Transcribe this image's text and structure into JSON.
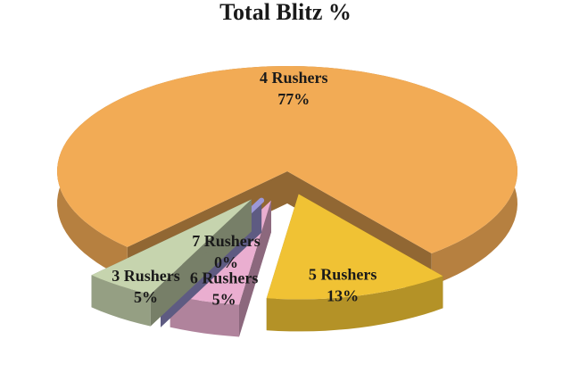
{
  "chart_data": {
    "type": "pie",
    "title": "Total Blitz %",
    "categories": [
      "4 Rushers",
      "5 Rushers",
      "6 Rushers",
      "7 Rushers",
      "3 Rushers"
    ],
    "values": [
      77,
      13,
      5,
      0,
      5
    ],
    "value_labels": [
      "77%",
      "13%",
      "5%",
      "0%",
      "5%"
    ],
    "colors": [
      "#f2ab55",
      "#f0c234",
      "#eaaed0",
      "#9c98d8",
      "#c6d4ae"
    ]
  }
}
